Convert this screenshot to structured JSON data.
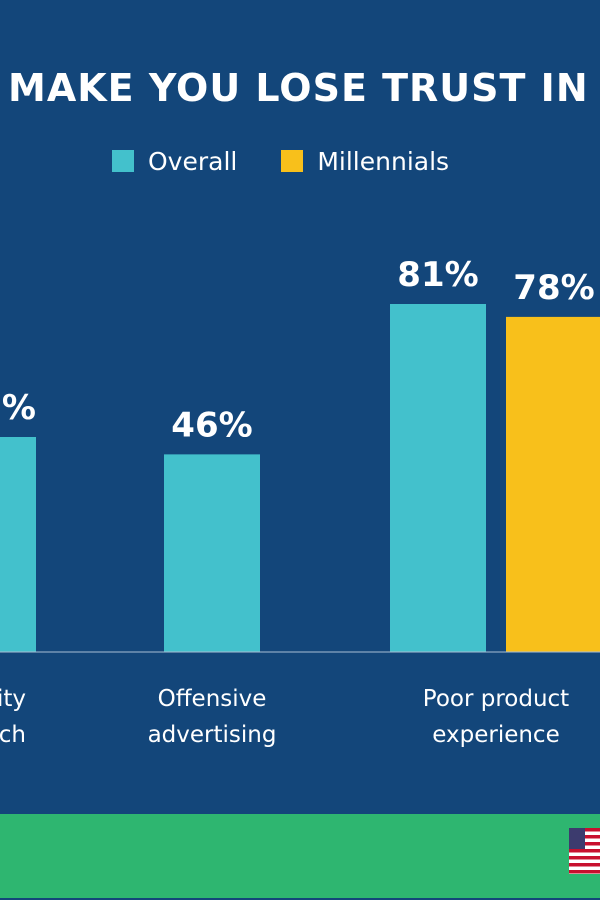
{
  "title": "MAKE YOU LOSE TRUST IN",
  "legend": [
    {
      "label": "Overall",
      "color": "#43c1cc"
    },
    {
      "label": "Millennials",
      "color": "#f8c01b"
    }
  ],
  "colors": {
    "background": "#13467a",
    "footer_band": "#2eb670",
    "text": "#ffffff",
    "baseline": "#a8bdd4"
  },
  "footer": {
    "flag_icon": "us-flag-icon"
  },
  "chart_data": {
    "type": "bar",
    "title": "MAKE YOU LOSE TRUST IN",
    "xlabel": "",
    "ylabel": "",
    "ylim": [
      0,
      100
    ],
    "grid": false,
    "legend_position": "top",
    "categories": [
      {
        "lines": [
          "rity",
          "ch"
        ]
      },
      {
        "lines": [
          "Offensive",
          "advertising"
        ]
      },
      {
        "lines": [
          "Poor product",
          "experience"
        ]
      }
    ],
    "series": [
      {
        "name": "Overall",
        "color": "#43c1cc",
        "values": [
          null,
          46,
          81
        ],
        "labels": [
          "%",
          "46%",
          "81%"
        ]
      },
      {
        "name": "Millennials",
        "color": "#f8c01b",
        "values": [
          null,
          null,
          78
        ],
        "labels": [
          null,
          null,
          "78%"
        ]
      }
    ]
  }
}
